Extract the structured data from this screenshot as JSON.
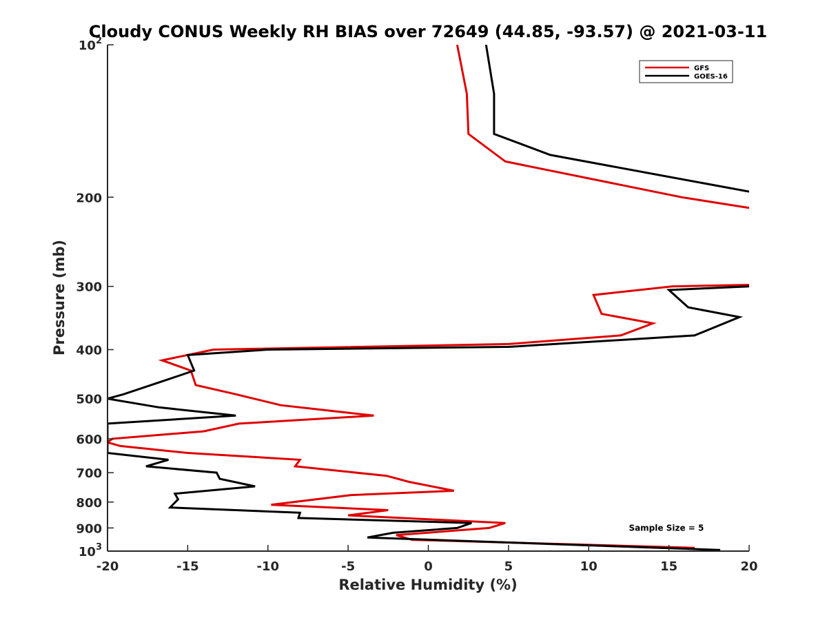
{
  "chart_data": {
    "type": "line",
    "title": "Cloudy CONUS Weekly RH BIAS over 72649 (44.85, -93.57) @ 2021-03-11",
    "xlabel": "Relative Humidity (%)",
    "ylabel": "Pressure (mb)",
    "xlim": [
      -20,
      20
    ],
    "ylim": [
      100,
      1000
    ],
    "y_scale": "log",
    "y_reversed": true,
    "grid": false,
    "legend_position": "top-right",
    "x_ticks": [
      -20,
      -15,
      -10,
      -5,
      0,
      5,
      10,
      15,
      20
    ],
    "x_tick_labels": [
      "-20",
      "-15",
      "-10",
      "-5",
      "0",
      "5",
      "10",
      "15",
      "20"
    ],
    "y_ticks": [
      {
        "value": 100,
        "base": "10",
        "exp": "2"
      },
      {
        "value": 200,
        "label": "200"
      },
      {
        "value": 300,
        "label": "300"
      },
      {
        "value": 400,
        "label": "400"
      },
      {
        "value": 500,
        "label": "500"
      },
      {
        "value": 600,
        "label": "600"
      },
      {
        "value": 700,
        "label": "700"
      },
      {
        "value": 800,
        "label": "800"
      },
      {
        "value": 900,
        "label": "900"
      },
      {
        "value": 1000,
        "base": "10",
        "exp": "3"
      }
    ],
    "series": [
      {
        "name": "GFS",
        "color": "#e00000",
        "segments": [
          {
            "x": [
              1.8,
              2.4,
              2.5,
              4.8,
              15.8,
              20
            ],
            "p": [
              100,
              125,
              150,
              170,
              200,
              210
            ]
          },
          {
            "x": [
              20,
              15.2,
              10.3,
              10.8,
              14.0,
              12.0,
              5.0,
              -13.4,
              -16.6,
              -14.8,
              -14.5,
              -12.0,
              -9.2,
              -3.4,
              -11.8,
              -14.0,
              -19.7,
              -20,
              -19.2,
              -15.0,
              -8.0,
              -8.3,
              -2.6,
              -1.2,
              1.6,
              -4.8,
              -9.8,
              -2.5,
              -5.0,
              4.8,
              3.8,
              -2.0,
              -1.0,
              16.6
            ],
            "p": [
              298,
              300,
              312,
              340,
              355,
              375,
              390,
              400,
              420,
              440,
              470,
              490,
              515,
              540,
              560,
              580,
              600,
              610,
              620,
              640,
              660,
              680,
              710,
              730,
              760,
              775,
              810,
              830,
              850,
              880,
              900,
              930,
              950,
              985
            ]
          }
        ]
      },
      {
        "name": "GOES-16",
        "color": "#000000",
        "segments": [
          {
            "x": [
              3.6,
              4.1,
              4.1,
              7.6,
              20
            ],
            "p": [
              100,
              125,
              150,
              165,
              195
            ]
          },
          {
            "x": [
              20,
              15.0,
              16.2,
              19.4,
              16.6,
              5.0,
              -10.0,
              -15.0,
              -14.6,
              -16.4,
              -19.0,
              -20,
              -16.8,
              -12.0,
              -20,
              -20,
              -16.2,
              -17.6,
              -13.2,
              -13.0,
              -10.8,
              -15.8,
              -15.6,
              -16.1,
              -8.0,
              -8.1,
              2.7,
              1.8,
              -2.2,
              -3.8,
              18.2
            ],
            "p": [
              300,
              305,
              330,
              345,
              375,
              395,
              400,
              410,
              440,
              460,
              490,
              500,
              520,
              540,
              560,
              640,
              660,
              680,
              700,
              720,
              745,
              770,
              790,
              820,
              840,
              860,
              880,
              900,
              920,
              940,
              995
            ]
          }
        ]
      }
    ],
    "annotations": [
      {
        "text": "Sample Size = 5",
        "x": 12.5,
        "p": 900
      }
    ]
  }
}
